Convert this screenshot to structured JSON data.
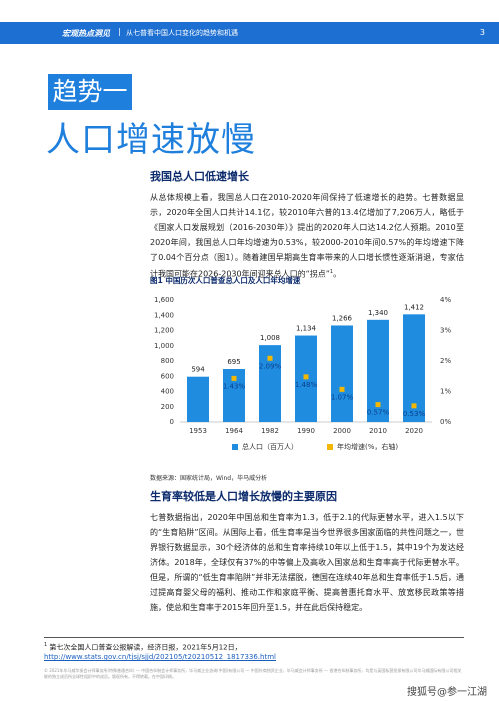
{
  "header": {
    "brand": "宏观热点洞见",
    "subtitle": "从七普看中国人口变化的趋势和机遇",
    "page": "3"
  },
  "trend": {
    "tag": "趋势一",
    "title": "人口增速放慢"
  },
  "section1": {
    "heading": "我国总人口低速增长",
    "text": "从总体规模上看，我国总人口在2010-2020年间保持了低速增长的趋势。七普数据显示，2020年全国人口共计14.1亿，较2010年六普的13.4亿增加了7,206万人，略低于《国家人口发展规划（2016-2030年）》提出的2020年人口达14.2亿人预期。2010至2020年间，我国总人口年均增速为0.53%，较2000-2010年间0.57%的年均增速下降了0.04个百分点（图1）。随着建国早期高生育率带来的人口增长惯性逐渐消退，专家估计我国可能在2026-2030年间迎来总人口的“拐点”",
    "footnote_ref": "1",
    "text_end": "。"
  },
  "chart_data": {
    "type": "bar",
    "title": "图1  中国历次人口普查总人口及人口年均增速",
    "categories": [
      "1953",
      "1964",
      "1982",
      "1990",
      "2000",
      "2010",
      "2020"
    ],
    "series": [
      {
        "name": "总人口（百万人）",
        "type": "bar",
        "color": "#1f8ce0",
        "values": [
          594,
          695,
          1008,
          1134,
          1266,
          1340,
          1412
        ],
        "value_labels": [
          "594",
          "695",
          "1,008",
          "1,134",
          "1,266",
          "1,340",
          "1,412"
        ]
      },
      {
        "name": "年均增速(%，右轴)",
        "type": "scatter",
        "axis": "y2",
        "color": "#f2b705",
        "values": [
          null,
          1.43,
          2.09,
          1.48,
          1.07,
          0.57,
          0.53
        ],
        "value_labels": [
          null,
          "1.43%",
          "2.09%",
          "1.48%",
          "1.07%",
          "0.57%",
          "0.53%"
        ]
      }
    ],
    "ylim": [
      0,
      1600
    ],
    "yticks": [
      0,
      200,
      400,
      600,
      800,
      {
        "value": 1000,
        "label": "1,000"
      },
      {
        "value": 1200,
        "label": "1,200"
      },
      {
        "value": 1400,
        "label": "1,400"
      },
      {
        "value": 1600,
        "label": "1,600"
      }
    ],
    "y2lim": [
      0,
      4
    ],
    "y2ticks": [
      {
        "value": 0,
        "label": "0%"
      },
      {
        "value": 1,
        "label": "1%"
      },
      {
        "value": 2,
        "label": "2%"
      },
      {
        "value": 3,
        "label": "3%"
      },
      {
        "value": 4,
        "label": "4%"
      }
    ],
    "grid": false,
    "source": "数据来源：国家统计局，Wind，毕马威分析"
  },
  "section2": {
    "heading": "生育率较低是人口增长放慢的主要原因",
    "text": "七普数据指出，2020年中国总和生育率为1.3，低于2.1的代际更替水平，进入1.5以下的“生育陷阱”区间。从国际上看，低生育率是当今世界很多国家面临的共性问题之一，世界银行数据显示，30个经济体的总和生育率持续10年以上低于1.5，其中19个为发达经济体。2018年，全球仅有37%的中等偏上及高收入国家总和生育率高于代际更替水平。但是，所谓的“低生育率陷阱”并非无法摆脱，德国在连续40年总和生育率低于1.5后，通过提高育婴父母的福利、推动工作和家庭平衡、提高普惠托育水平、放宽移民政策等措施，使总和生育率于2015年回升至1.5，并在此后保持稳定。"
  },
  "footnote": {
    "marker": "1",
    "text": "第七次全国人口普查公报解读，经济日报，2021年5月12日，",
    "url": "http://www.stats.gov.cn/tjsj/sjjd/202105/t20210512_1817336.html"
  },
  "footer": "© 2021年毕马威华振会计师事务所(特殊普通合伙) — 中国合伙制会计师事务所，毕马威企业咨询(中国)有限公司 — 中国外商独资企业，毕马威会计师事务所 — 香港合伙制事务所，均是与英国私营担保有限公司毕马威国际有限公司相关联的独立成员所全球性组织中的成员。版权所有，不得转载。在中国印刷。",
  "watermark": "搜狐号@参一江湖"
}
